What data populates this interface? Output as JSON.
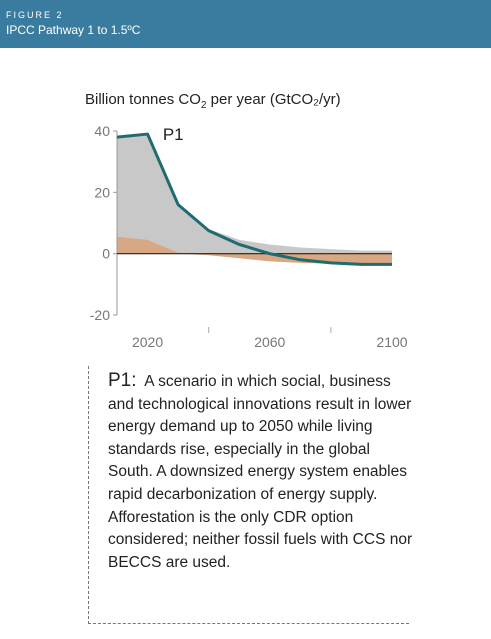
{
  "header": {
    "figure_label": "FIGURE 2",
    "title": "IPCC Pathway 1 to 1.5ºC"
  },
  "colors": {
    "header_bg": "#3a7ca0",
    "total_line": "#1e6b72",
    "gray_area": "#c8c8c8",
    "tan_area": "#d7a883",
    "zero_line": "#222222"
  },
  "chart_data": {
    "type": "area",
    "title_prefix": "Billion tonnes CO",
    "title_sub": "2",
    "title_suffix": " per year (GtCO₂/yr)",
    "annotation": "P1",
    "x_ticks": [
      "2020",
      "2060",
      "2100"
    ],
    "x_minor_ticks": [
      2040,
      2080
    ],
    "y_ticks": [
      "40",
      "20",
      "0",
      "-20"
    ],
    "y_tick_values": [
      40,
      20,
      0,
      -20
    ],
    "xlim": [
      2010,
      2100
    ],
    "ylim": [
      -20,
      40
    ],
    "x": [
      2010,
      2020,
      2030,
      2040,
      2050,
      2060,
      2070,
      2080,
      2090,
      2100
    ],
    "series": [
      {
        "name": "P1",
        "role": "net_total_line",
        "values": [
          38,
          39,
          16,
          7.5,
          3,
          0,
          -2,
          -3,
          -3.5,
          -3.5
        ]
      },
      {
        "role": "gray_area_upper",
        "values": [
          38,
          39,
          16,
          8,
          4.5,
          3,
          2,
          1.5,
          1,
          1
        ]
      },
      {
        "role": "tan_area_upper",
        "values": [
          5.5,
          4.5,
          0.3,
          0,
          0,
          0,
          0,
          0,
          0,
          0
        ]
      },
      {
        "role": "tan_area_lower",
        "values": [
          0,
          0,
          0,
          -0.5,
          -1.5,
          -2.5,
          -3,
          -3.3,
          -3.5,
          -3.5
        ]
      }
    ]
  },
  "description": {
    "heading": "P1:",
    "text": "A scenario in which social, business and technological innovations result in lower energy demand up to 2050 while living standards rise, especially in the global South. A downsized energy system enables rapid decarbonization of energy supply. Afforestation is the only CDR option considered; neither fossil fuels with CCS nor BECCS are used."
  }
}
